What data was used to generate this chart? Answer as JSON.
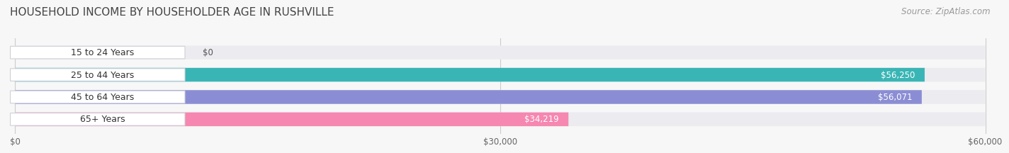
{
  "title": "HOUSEHOLD INCOME BY HOUSEHOLDER AGE IN RUSHVILLE",
  "source": "Source: ZipAtlas.com",
  "categories": [
    "15 to 24 Years",
    "25 to 44 Years",
    "45 to 64 Years",
    "65+ Years"
  ],
  "values": [
    0,
    56250,
    56071,
    34219
  ],
  "bar_colors": [
    "#c9a8d8",
    "#3ab5b5",
    "#8b8dd4",
    "#f587b0"
  ],
  "bar_bg_color": "#ebebf0",
  "xlim": [
    0,
    60000
  ],
  "xticks": [
    0,
    30000,
    60000
  ],
  "xtick_labels": [
    "$0",
    "$30,000",
    "$60,000"
  ],
  "title_fontsize": 11,
  "source_fontsize": 8.5,
  "label_fontsize": 9,
  "value_fontsize": 8.5,
  "background_color": "#f7f7f7"
}
